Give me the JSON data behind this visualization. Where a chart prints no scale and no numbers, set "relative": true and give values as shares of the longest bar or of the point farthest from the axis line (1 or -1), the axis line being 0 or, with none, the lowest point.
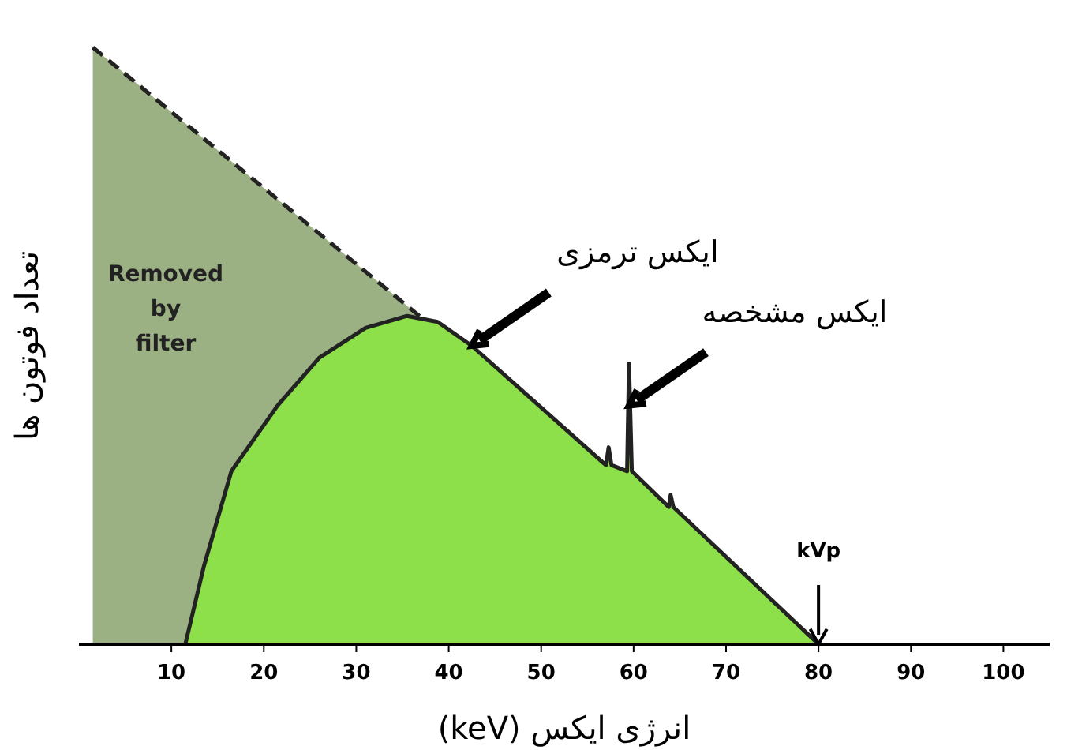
{
  "chart_data": {
    "type": "area",
    "relative": true,
    "xlabel": "انرژی ایکس (keV)",
    "ylabel": "تعداد فوتون ها",
    "series": [
      {
        "line_style": "dashed",
        "color": "#9bb083",
        "x": [
          1.5,
          80
        ],
        "values": [
          1.0,
          0
        ]
      },
      {
        "line_style": "solid",
        "color": "#8ee04a",
        "x": [
          11.5,
          13.5,
          16.5,
          21.5,
          26,
          31,
          35.5,
          38.8,
          42.5,
          57,
          57.3,
          57.6,
          59.3,
          59.5,
          59.8,
          63.8,
          64,
          64.3,
          80
        ],
        "values": [
          0,
          0.13,
          0.29,
          0.4,
          0.48,
          0.53,
          0.55,
          0.54,
          0.5,
          0.3,
          0.33,
          0.3,
          0.29,
          0.47,
          0.29,
          0.23,
          0.25,
          0.23,
          0
        ]
      }
    ],
    "xlim": [
      0,
      105
    ],
    "xticks": [
      10,
      20,
      30,
      40,
      50,
      60,
      70,
      80,
      90,
      100
    ],
    "tick_labels": "x",
    "grid": false,
    "annotations": [
      "Removed by filter",
      {
        "text": "ایکس ترمزی",
        "x": 42.5,
        "y": 0.5
      },
      {
        "text": "ایکس مشخصه",
        "x": 59.5,
        "y": 0.4
      },
      {
        "text": "kVp",
        "x": 80,
        "y": 0
      }
    ]
  }
}
